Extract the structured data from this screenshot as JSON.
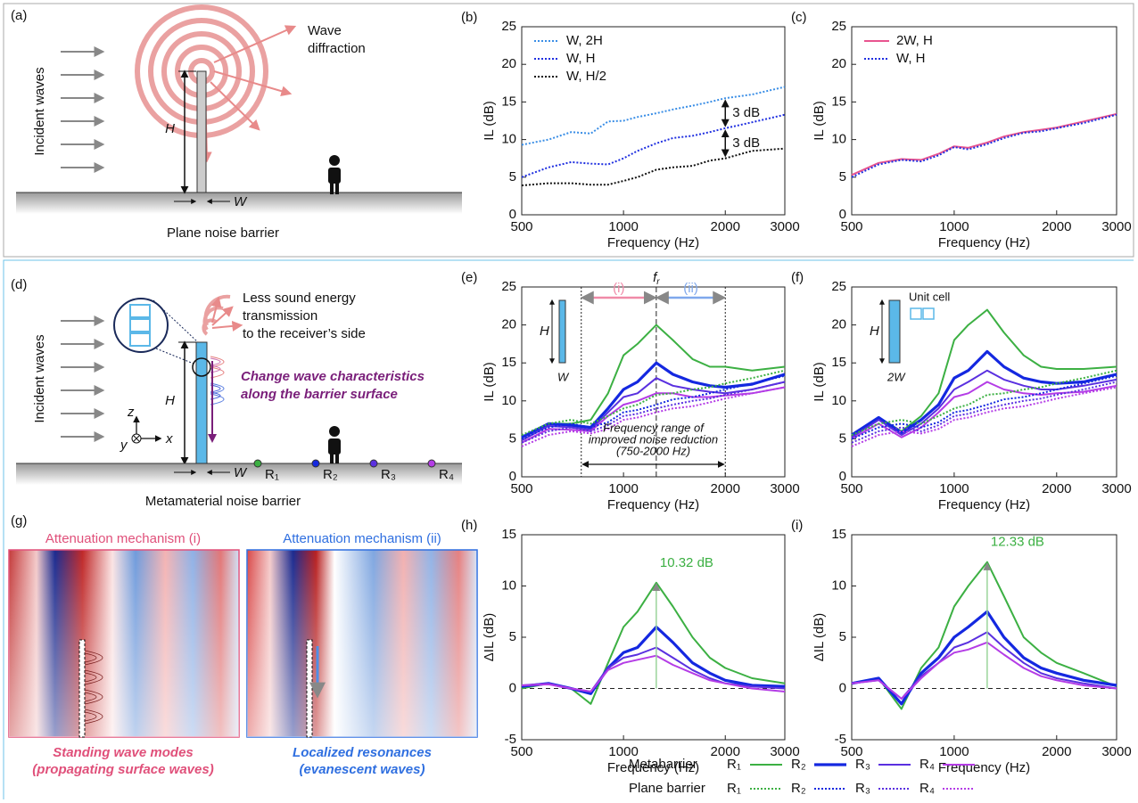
{
  "panel_a": {
    "label": "(a)",
    "incident": "Incident waves",
    "diffraction": [
      "Wave",
      "diffraction"
    ],
    "H": "H",
    "W": "W",
    "caption": "Plane noise barrier"
  },
  "panel_d": {
    "label": "(d)",
    "transmission": [
      "Less sound energy",
      "transmission",
      "to the receiver’s side"
    ],
    "change": [
      "Change wave characteristics",
      "along the barrier surface"
    ],
    "incident": "Incident waves",
    "H": "H",
    "W": "W",
    "axes": [
      "z",
      "y",
      "x"
    ],
    "receivers": [
      "R₁",
      "R₂",
      "R₃",
      "R₄"
    ],
    "caption": "Metamaterial noise barrier"
  },
  "panel_g": {
    "label": "(g)",
    "titles": [
      "Attenuation mechanism (i)",
      "Attenuation mechanism (ii)"
    ],
    "captions": [
      [
        "Standing wave modes",
        "(propagating surface waves)"
      ],
      [
        "Localized resonances",
        "(evanescent waves)"
      ]
    ]
  },
  "legend": {
    "rows": [
      "Metabarrier",
      "Plane barrier"
    ],
    "entries": [
      "R₁",
      "R₂",
      "R₃",
      "R₄"
    ]
  },
  "chart_data": [
    {
      "type": "line",
      "label": "(b)",
      "xlabel": "Frequency (Hz)",
      "ylabel": "IL (dB)",
      "log_x": true,
      "legend": "upper left",
      "x": [
        500,
        600,
        700,
        800,
        900,
        1000,
        1100,
        1250,
        1400,
        1600,
        1800,
        2000,
        2400,
        3000
      ],
      "xlim": [
        500,
        3000
      ],
      "xticks": [
        500,
        1000,
        2000,
        3000
      ],
      "ylim": [
        0,
        25
      ],
      "yticks": [
        0,
        5,
        10,
        15,
        20,
        25
      ],
      "annotations": [
        "3 dB",
        "3 dB"
      ],
      "series": [
        {
          "name": "W, 2H",
          "color": "#3a8ee6",
          "style": "dotted",
          "width": 2,
          "values": [
            9.3,
            10,
            11,
            10.8,
            12.4,
            12.5,
            13,
            13.5,
            14,
            14.5,
            15,
            15.5,
            16,
            17
          ]
        },
        {
          "name": "W, H",
          "color": "#1f2fe0",
          "style": "dotted",
          "width": 2,
          "values": [
            5,
            6.3,
            7,
            6.8,
            6.7,
            7.5,
            8.5,
            9.5,
            10.2,
            10.5,
            11,
            11.5,
            12.3,
            13.3
          ]
        },
        {
          "name": "W, H/2",
          "color": "#111111",
          "style": "dotted",
          "width": 2,
          "values": [
            3.9,
            4.2,
            4.2,
            4,
            4,
            4.5,
            5,
            6,
            6.3,
            6.5,
            7.2,
            7.5,
            8.5,
            8.8
          ]
        }
      ]
    },
    {
      "type": "line",
      "label": "(c)",
      "xlabel": "Frequency (Hz)",
      "ylabel": "IL (dB)",
      "log_x": true,
      "legend": "upper left",
      "x": [
        500,
        600,
        700,
        800,
        900,
        1000,
        1100,
        1250,
        1400,
        1600,
        1800,
        2000,
        2400,
        3000
      ],
      "xlim": [
        500,
        3000
      ],
      "xticks": [
        500,
        1000,
        2000,
        3000
      ],
      "ylim": [
        0,
        25
      ],
      "yticks": [
        0,
        5,
        10,
        15,
        20,
        25
      ],
      "series": [
        {
          "name": "2W, H",
          "color": "#e8548f",
          "style": "solid",
          "width": 2,
          "values": [
            5.3,
            6.9,
            7.4,
            7.3,
            8.1,
            9.1,
            8.9,
            9.6,
            10.4,
            11,
            11.3,
            11.6,
            12.4,
            13.4
          ]
        },
        {
          "name": "W, H",
          "color": "#1f2fe0",
          "style": "dotted",
          "width": 2,
          "values": [
            5,
            6.7,
            7.3,
            7.1,
            7.9,
            9,
            8.7,
            9.4,
            10.2,
            10.9,
            11.1,
            11.5,
            12.2,
            13.3
          ]
        }
      ]
    },
    {
      "type": "line",
      "label": "(e)",
      "xlabel": "Frequency (Hz)",
      "ylabel": "IL (dB)",
      "log_x": true,
      "x": [
        500,
        600,
        700,
        800,
        900,
        1000,
        1100,
        1250,
        1400,
        1600,
        1800,
        2000,
        2400,
        3000
      ],
      "xlim": [
        500,
        3000
      ],
      "xticks": [
        500,
        1000,
        2000,
        3000
      ],
      "ylim": [
        0,
        25
      ],
      "yticks": [
        0,
        5,
        10,
        15,
        20,
        25
      ],
      "vlines": [
        750,
        1250,
        2000
      ],
      "fr": {
        "symbol": "f",
        "subscript": "r"
      },
      "ranges": [
        "(i)",
        "(ii)"
      ],
      "note": [
        "Frequency range of",
        "improved noise reduction",
        "(750-2000 Hz)"
      ],
      "inset": [
        "H",
        "W"
      ],
      "series": [
        {
          "color": "#3cb043",
          "style": "solid",
          "width": 2,
          "values": [
            5.2,
            7,
            7,
            7.5,
            11,
            16,
            17.5,
            20,
            18,
            15.5,
            14.5,
            14.5,
            14,
            14.5
          ]
        },
        {
          "color": "#1428e0",
          "style": "solid",
          "width": 3.2,
          "values": [
            5.2,
            7,
            6.8,
            6.5,
            9,
            11.5,
            12.5,
            15,
            13.5,
            12.5,
            12,
            11.8,
            12.2,
            13.5
          ]
        },
        {
          "color": "#5a30e0",
          "style": "solid",
          "width": 2,
          "values": [
            4.8,
            6.7,
            6.5,
            6.2,
            8.5,
            10.5,
            11,
            13,
            12,
            11.5,
            11.2,
            11,
            11.5,
            12.5
          ]
        },
        {
          "color": "#b43ce6",
          "style": "solid",
          "width": 2,
          "values": [
            4.5,
            6.3,
            6.2,
            6,
            8,
            9.5,
            10,
            11,
            11,
            10.5,
            10.5,
            10.7,
            11,
            11.8
          ]
        },
        {
          "color": "#3cb043",
          "style": "dotted",
          "width": 2,
          "values": [
            5.5,
            7,
            7.5,
            7,
            8,
            9,
            9.5,
            10.8,
            11,
            11.5,
            11.8,
            12.3,
            13,
            14
          ]
        },
        {
          "color": "#1428e0",
          "style": "dotted",
          "width": 2,
          "values": [
            5,
            6.5,
            7,
            6.5,
            7.2,
            8.5,
            8.8,
            9.5,
            10.2,
            10.5,
            11,
            11.5,
            12.3,
            13.3
          ]
        },
        {
          "color": "#5a30e0",
          "style": "dotted",
          "width": 2,
          "values": [
            4.5,
            6,
            6.5,
            6,
            6.8,
            8,
            8.3,
            9,
            9.5,
            10,
            10.3,
            10.8,
            11.5,
            12.5
          ]
        },
        {
          "color": "#b43ce6",
          "style": "dotted",
          "width": 2,
          "values": [
            4,
            5.5,
            6,
            5.7,
            6.3,
            7.5,
            7.8,
            8.5,
            9,
            9.3,
            9.8,
            10.3,
            11,
            11.8
          ]
        }
      ]
    },
    {
      "type": "line",
      "label": "(f)",
      "xlabel": "Frequency (Hz)",
      "ylabel": "IL (dB)",
      "log_x": true,
      "x": [
        500,
        600,
        700,
        800,
        900,
        1000,
        1100,
        1250,
        1400,
        1600,
        1800,
        2000,
        2400,
        3000
      ],
      "xlim": [
        500,
        3000
      ],
      "xticks": [
        500,
        1000,
        2000,
        3000
      ],
      "ylim": [
        0,
        25
      ],
      "yticks": [
        0,
        5,
        10,
        15,
        20,
        25
      ],
      "inset": [
        "Unit cell",
        "H",
        "2W"
      ],
      "series": [
        {
          "color": "#3cb043",
          "style": "solid",
          "width": 2,
          "values": [
            5.5,
            7.8,
            6,
            8,
            11,
            18,
            20,
            22,
            19,
            16,
            14.5,
            14.2,
            14.2,
            14.5
          ]
        },
        {
          "color": "#1428e0",
          "style": "solid",
          "width": 3.2,
          "values": [
            5.5,
            7.8,
            5.8,
            7.5,
            9.5,
            13,
            14,
            16.5,
            14.5,
            13,
            12.5,
            12.3,
            12.5,
            13.5
          ]
        },
        {
          "color": "#5a30e0",
          "style": "solid",
          "width": 2,
          "values": [
            5.2,
            7.5,
            5.5,
            7,
            9,
            11.5,
            12.5,
            14,
            12.8,
            12,
            11.5,
            11.5,
            12,
            12.8
          ]
        },
        {
          "color": "#b43ce6",
          "style": "solid",
          "width": 2,
          "values": [
            5,
            7,
            5.2,
            6.5,
            8.5,
            10.5,
            11,
            12.5,
            11.5,
            11,
            10.8,
            11,
            11.2,
            12
          ]
        },
        {
          "color": "#3cb043",
          "style": "dotted",
          "width": 2,
          "values": [
            5.5,
            7,
            7.5,
            7,
            8,
            9,
            9.5,
            10.8,
            11,
            11.5,
            11.8,
            12.3,
            13,
            14
          ]
        },
        {
          "color": "#1428e0",
          "style": "dotted",
          "width": 2,
          "values": [
            5,
            6.5,
            7,
            6.5,
            7.2,
            8.5,
            8.8,
            9.5,
            10.2,
            10.5,
            11,
            11.5,
            12.3,
            13.3
          ]
        },
        {
          "color": "#5a30e0",
          "style": "dotted",
          "width": 2,
          "values": [
            4.5,
            6,
            6.5,
            6,
            6.8,
            8,
            8.3,
            9,
            9.5,
            10,
            10.3,
            10.8,
            11.5,
            12.5
          ]
        },
        {
          "color": "#b43ce6",
          "style": "dotted",
          "width": 2,
          "values": [
            4,
            5.5,
            6,
            5.7,
            6.3,
            7.5,
            7.8,
            8.5,
            9,
            9.3,
            9.8,
            10.3,
            11,
            11.8
          ]
        }
      ]
    },
    {
      "type": "line",
      "label": "(h)",
      "xlabel": "Frequency (Hz)",
      "ylabel": "ΔIL (dB)",
      "log_x": true,
      "zero_line": true,
      "x": [
        500,
        600,
        700,
        800,
        900,
        1000,
        1100,
        1250,
        1400,
        1600,
        1800,
        2000,
        2400,
        3000
      ],
      "xlim": [
        500,
        3000
      ],
      "xticks": [
        500,
        1000,
        2000,
        3000
      ],
      "ylim": [
        -5,
        15
      ],
      "yticks": [
        -5,
        0,
        5,
        10,
        15
      ],
      "annotations": [
        "10.32 dB"
      ],
      "series": [
        {
          "color": "#3cb043",
          "style": "solid",
          "width": 2,
          "values": [
            0,
            0.5,
            0,
            -1.5,
            2.5,
            6,
            7.5,
            10.32,
            8,
            5,
            3,
            2,
            1,
            0.5
          ]
        },
        {
          "color": "#1428e0",
          "style": "solid",
          "width": 3.2,
          "values": [
            0.2,
            0.5,
            0,
            -0.5,
            2,
            3.5,
            4,
            6,
            4.5,
            2.5,
            1.5,
            0.8,
            0.3,
            0.2
          ]
        },
        {
          "color": "#5a30e0",
          "style": "solid",
          "width": 2,
          "values": [
            0.3,
            0.5,
            0,
            -0.3,
            2,
            3,
            3.3,
            4,
            3,
            1.8,
            1,
            0.5,
            0.2,
            0
          ]
        },
        {
          "color": "#b43ce6",
          "style": "solid",
          "width": 2,
          "values": [
            0.3,
            0.4,
            0,
            -0.3,
            1.8,
            2.5,
            2.8,
            3.2,
            2.3,
            1.5,
            0.8,
            0.5,
            0,
            -0.3
          ]
        }
      ]
    },
    {
      "type": "line",
      "label": "(i)",
      "xlabel": "Frequency (Hz)",
      "ylabel": "ΔIL (dB)",
      "log_x": true,
      "zero_line": true,
      "x": [
        500,
        600,
        700,
        800,
        900,
        1000,
        1100,
        1250,
        1400,
        1600,
        1800,
        2000,
        2400,
        3000
      ],
      "xlim": [
        500,
        3000
      ],
      "xticks": [
        500,
        1000,
        2000,
        3000
      ],
      "ylim": [
        -5,
        15
      ],
      "yticks": [
        -5,
        0,
        5,
        10,
        15
      ],
      "annotations": [
        "12.33 dB"
      ],
      "series": [
        {
          "color": "#3cb043",
          "style": "solid",
          "width": 2,
          "values": [
            0.5,
            1,
            -2,
            2,
            4,
            8,
            10,
            12.33,
            9,
            5,
            3.5,
            2.5,
            1.5,
            0.2
          ]
        },
        {
          "color": "#1428e0",
          "style": "solid",
          "width": 3.2,
          "values": [
            0.5,
            1,
            -1.5,
            1.5,
            3,
            5,
            6,
            7.5,
            5,
            3,
            2,
            1.5,
            0.8,
            0.3
          ]
        },
        {
          "color": "#5a30e0",
          "style": "solid",
          "width": 2,
          "values": [
            0.5,
            0.8,
            -1,
            1.2,
            2.5,
            4,
            4.5,
            5.5,
            4,
            2.5,
            1.5,
            1,
            0.5,
            0
          ]
        },
        {
          "color": "#b43ce6",
          "style": "solid",
          "width": 2,
          "values": [
            0.5,
            0.8,
            -1,
            1,
            2.5,
            3.5,
            3.8,
            4.5,
            3.3,
            2,
            1.2,
            0.8,
            0.3,
            0
          ]
        }
      ]
    }
  ]
}
